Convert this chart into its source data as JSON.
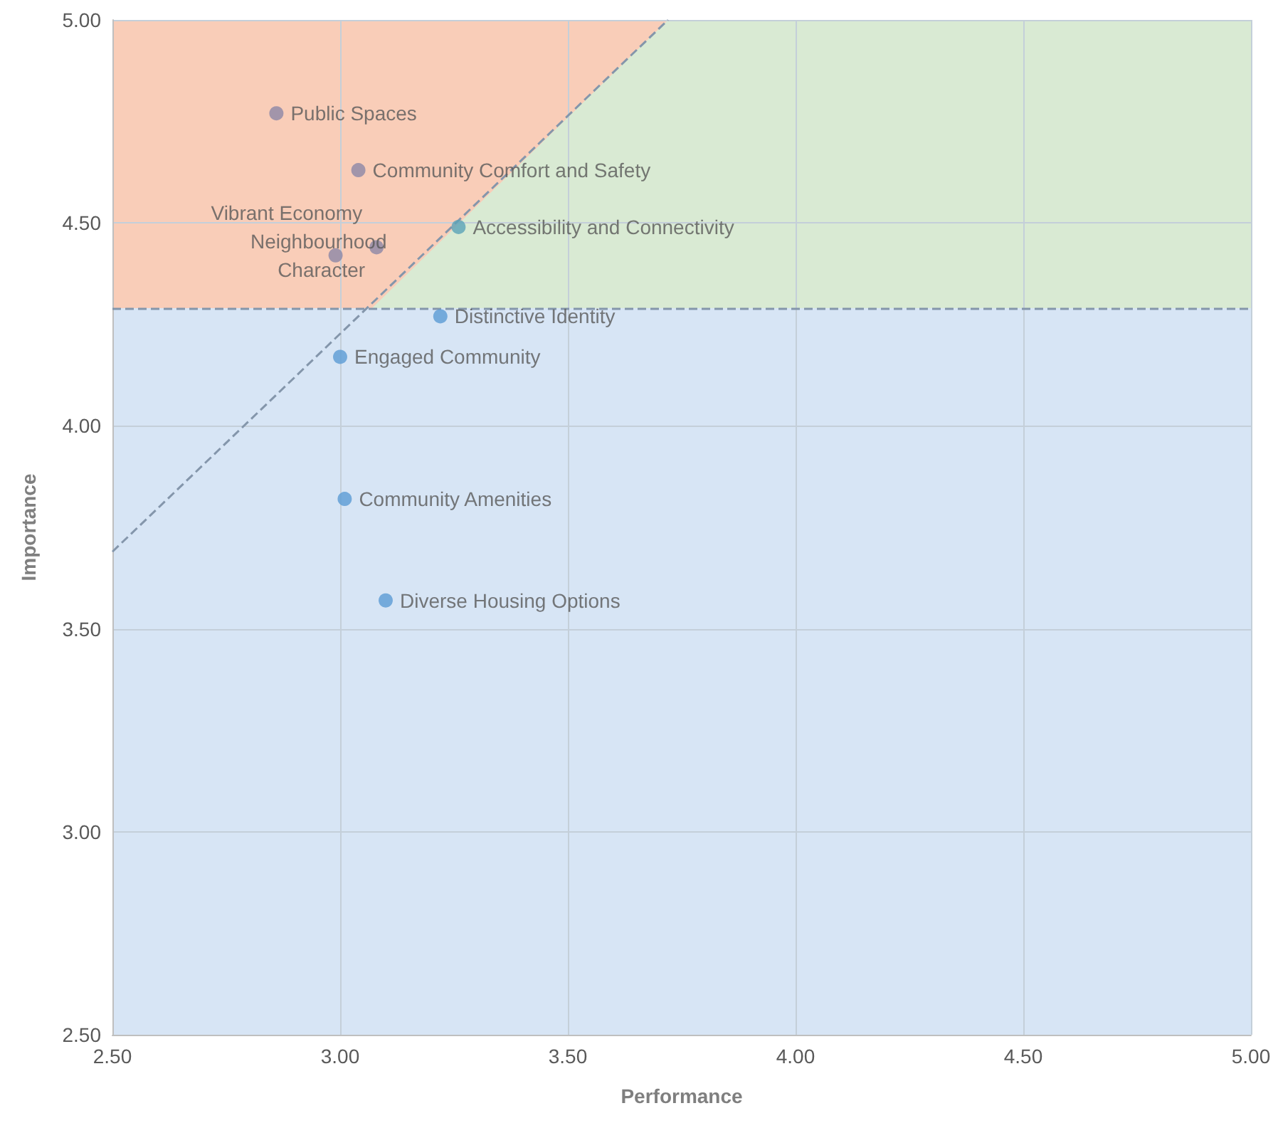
{
  "chart_data": {
    "type": "scatter",
    "xlabel": "Performance",
    "ylabel": "Importance",
    "x": [
      2.86,
      3.04,
      3.26,
      3.08,
      2.99,
      3.22,
      3.0,
      3.01,
      3.1
    ],
    "values": [
      4.77,
      4.63,
      4.49,
      4.44,
      4.42,
      4.27,
      4.17,
      3.82,
      3.57
    ],
    "colors": [
      "#8c87a6",
      "#8c87a6",
      "#5aa3b8",
      "#8c87a6",
      "#8c87a6",
      "#5b9bd5",
      "#5b9bd5",
      "#5b9bd5",
      "#5b9bd5"
    ],
    "series": [
      {
        "type": "line",
        "x": [
          2.5,
          3.72
        ],
        "values": [
          3.69,
          5.0
        ],
        "color": "#8496ab",
        "line_style": "dashed",
        "marker": "none"
      },
      {
        "type": "area",
        "x": [
          2.5,
          2.5,
          3.07,
          3.72
        ],
        "values": [
          5.0,
          4.29,
          4.29,
          5.0
        ],
        "color": "#f9cdb8",
        "marker": "none"
      }
    ],
    "marker": "circle",
    "xlim": [
      2.5,
      5.0
    ],
    "ylim": [
      2.5,
      5.0
    ],
    "xticks": [
      {
        "value": 2.5,
        "label": "2.50"
      },
      {
        "value": 3.0,
        "label": "3.00"
      },
      {
        "value": 3.5,
        "label": "3.50"
      },
      {
        "value": 4.0,
        "label": "4.00"
      },
      {
        "value": 4.5,
        "label": "4.50"
      },
      {
        "value": 5.0,
        "label": "5.00"
      }
    ],
    "yticks": [
      {
        "value": 2.5,
        "label": "2.50"
      },
      {
        "value": 3.0,
        "label": "3.00"
      },
      {
        "value": 3.5,
        "label": "3.50"
      },
      {
        "value": 4.0,
        "label": "4.00"
      },
      {
        "value": 4.5,
        "label": "4.50"
      },
      {
        "value": 5.0,
        "label": "5.00"
      }
    ],
    "grid": true,
    "ref_lines": [
      {
        "axis": "y",
        "value": 4.29,
        "color": "#8496ab",
        "line_style": "dashed"
      }
    ],
    "bands": [
      {
        "axis": "y",
        "from": 2.5,
        "to": 4.29,
        "color": "#d7e5f5"
      },
      {
        "axis": "y",
        "from": 4.29,
        "to": 5.0,
        "color": "#d9ead3"
      }
    ],
    "annotations": [
      {
        "text": "Public Spaces",
        "x": 2.86,
        "y": 4.77
      },
      {
        "text": "Community Comfort and Safety",
        "x": 3.04,
        "y": 4.63
      },
      {
        "text": "Accessibility and Connectivity",
        "x": 3.26,
        "y": 4.49
      },
      {
        "text": "Vibrant Economy",
        "x": 3.08,
        "y": 4.44
      },
      {
        "text": "Neighbourhood Character",
        "x": 2.99,
        "y": 4.42
      },
      {
        "text": "Distinctive Identity",
        "x": 3.22,
        "y": 4.27
      },
      {
        "text": "Engaged Community",
        "x": 3.0,
        "y": 4.17
      },
      {
        "text": "Community Amenities",
        "x": 3.01,
        "y": 3.82
      },
      {
        "text": "Diverse Housing Options",
        "x": 3.1,
        "y": 3.57
      }
    ]
  }
}
